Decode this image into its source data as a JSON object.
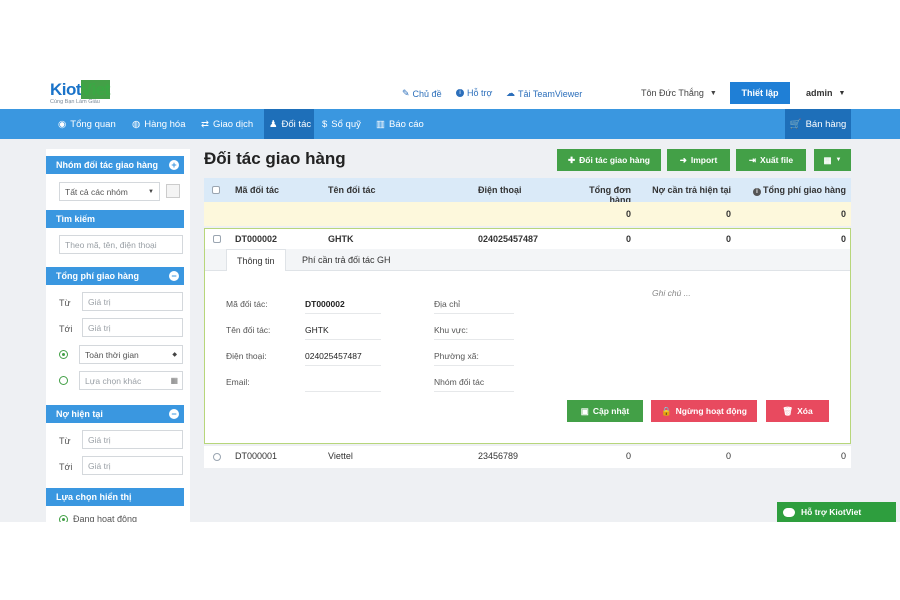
{
  "brand": {
    "name_a": "Kiot",
    "name_b": "Viet",
    "slogan": "Cùng Bạn Làm Giàu"
  },
  "header": {
    "links": [
      "Chủ đề",
      "Hỗ trợ",
      "Tải TeamViewer"
    ],
    "user_name": "Tôn Đức Thắng",
    "settings_label": "Thiết lập",
    "admin_label": "admin"
  },
  "nav": {
    "items": [
      "Tổng quan",
      "Hàng hóa",
      "Giao dịch",
      "Đối tác",
      "Sổ quỹ",
      "Báo cáo"
    ],
    "active": "Đối tác",
    "sell_label": "Bán hàng"
  },
  "sidebar": {
    "group_title": "Nhóm đối tác giao hàng",
    "group_select": "Tất cả các nhóm",
    "search_title": "Tìm kiếm",
    "search_placeholder": "Theo mã, tên, điện thoại",
    "fee_title": "Tổng phí giao hàng",
    "from_label": "Từ",
    "to_label": "Tới",
    "value_placeholder": "Giá trị",
    "time_all": "Toàn thời gian",
    "time_other": "Lựa chọn khác",
    "debt_title": "Nợ hiện tại",
    "display_title": "Lựa chọn hiển thị",
    "display_option": "Đang hoạt động"
  },
  "main": {
    "title": "Đối tác giao hàng",
    "buttons": {
      "add": "Đối tác giao hàng",
      "import": "Import",
      "export": "Xuất file"
    },
    "columns": [
      "Mã đối tác",
      "Tên đối tác",
      "Điện thoại",
      "Tổng đơn hàng",
      "Nợ cần trả hiện tại",
      "Tổng phí giao hàng"
    ],
    "summary": {
      "orders": "0",
      "debt": "0",
      "fee": "0"
    },
    "rows": [
      {
        "code": "DT000002",
        "name": "GHTK",
        "phone": "024025457487",
        "orders": "0",
        "debt": "0",
        "fee": "0"
      },
      {
        "code": "DT000001",
        "name": "Viettel",
        "phone": "23456789",
        "orders": "0",
        "debt": "0",
        "fee": "0"
      }
    ],
    "detail": {
      "tabs": [
        "Thông tin",
        "Phí cần trả đối tác GH"
      ],
      "labels": {
        "code": "Mã đối tác:",
        "name": "Tên đối tác:",
        "phone": "Điện thoại:",
        "email": "Email:",
        "address": "Địa chỉ",
        "area": "Khu vực:",
        "ward": "Phường xã:",
        "group": "Nhóm đối tác"
      },
      "values": {
        "code": "DT000002",
        "name": "GHTK",
        "phone": "024025457487"
      },
      "note_placeholder": "Ghi chú ...",
      "actions": {
        "update": "Cập nhật",
        "stop": "Ngừng hoạt động",
        "delete": "Xóa"
      }
    }
  },
  "support_label": "Hỗ trợ KiotViet"
}
